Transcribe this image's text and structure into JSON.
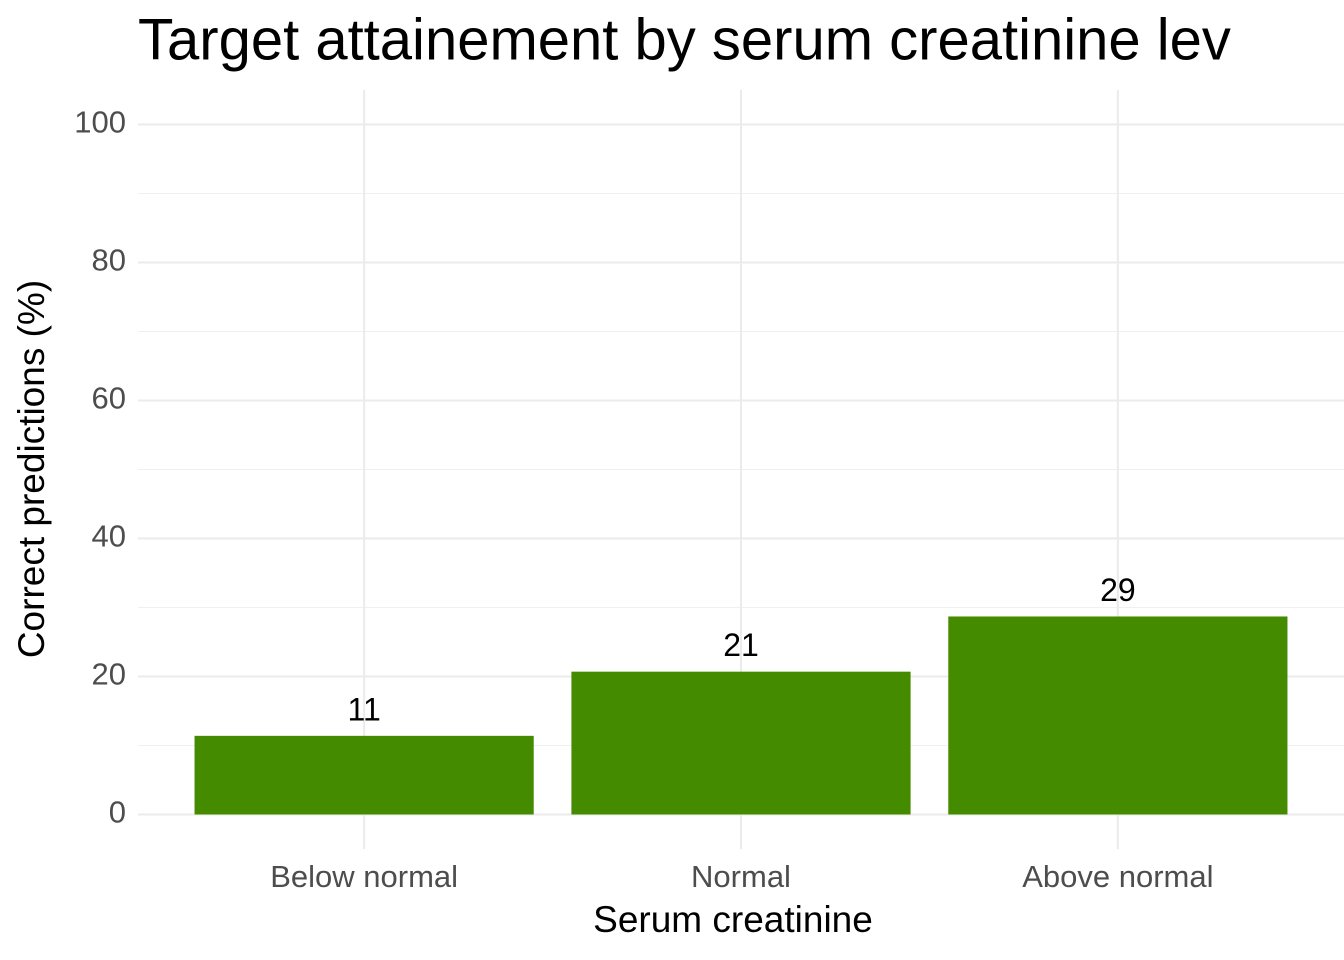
{
  "chart_data": {
    "type": "bar",
    "title": "Target attainement by serum creatinine lev",
    "x_label": "Serum creatinine",
    "y_label": "Correct predictions (%)",
    "categories": [
      "Below normal",
      "Normal",
      "Above normal"
    ],
    "values": [
      11.4,
      20.7,
      28.7
    ],
    "value_labels": [
      "11",
      "21",
      "29"
    ],
    "color": "#458b00",
    "ylim": [
      -5,
      105
    ],
    "yticks": [
      0,
      20,
      40,
      60,
      80,
      100
    ],
    "minor_yticks": [
      10,
      30,
      50,
      70,
      90
    ],
    "grid": true
  }
}
